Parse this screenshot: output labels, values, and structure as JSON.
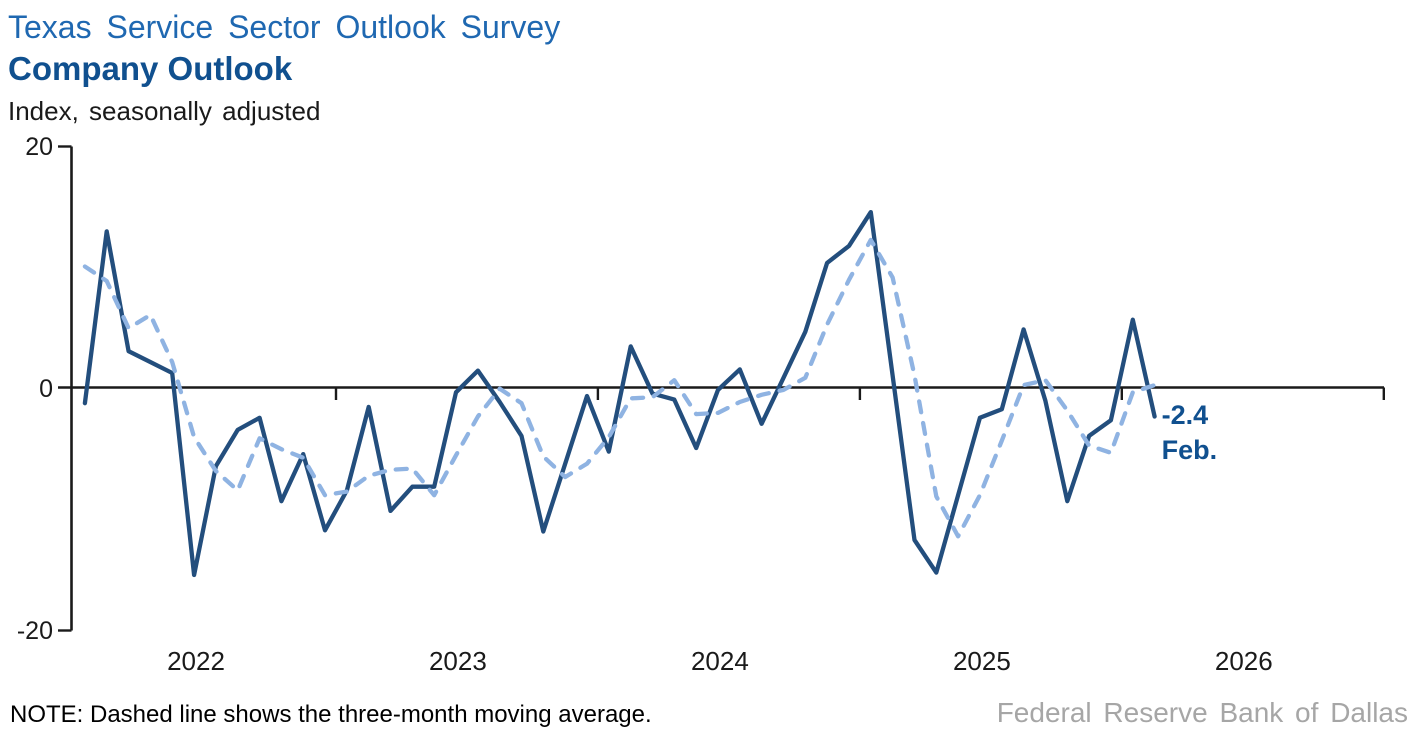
{
  "header": {
    "survey_title": "Texas Service Sector Outlook Survey",
    "chart_title": "Company Outlook",
    "units_label": "Index, seasonally adjusted"
  },
  "footer": {
    "note": "NOTE: Dashed line shows the three-month moving average.",
    "source": "Federal Reserve Bank of Dallas"
  },
  "colors": {
    "title_blue": "#1f68b1",
    "title_dark_blue": "#10508f",
    "series_solid": "#234e7d",
    "series_dashed": "#8fb3e2",
    "axis_black": "#1a1a1a",
    "source_gray": "#a6a6a6"
  },
  "chart_data": {
    "type": "line",
    "title": "Company Outlook",
    "subtitle": "Texas Service Sector Outlook Survey",
    "ylabel": "Index, seasonally adjusted",
    "ylim": [
      -20,
      20
    ],
    "yticks": [
      20,
      0,
      -20
    ],
    "x_year_labels": [
      "2022",
      "2023",
      "2024",
      "2025",
      "2026"
    ],
    "x_axis_span_months": 60,
    "start_month": "Jan 2022",
    "end_month": "Feb 2026",
    "grid": false,
    "legend_position": "none",
    "series": [
      {
        "name": "Company Outlook index (monthly)",
        "style": "solid",
        "color": "#234e7d",
        "values": [
          -1.3,
          12.9,
          3.0,
          2.1,
          1.2,
          -15.5,
          -6.5,
          -3.5,
          -2.5,
          -9.4,
          -5.5,
          -11.8,
          -8.5,
          -1.6,
          -10.2,
          -8.2,
          -8.2,
          -0.4,
          1.4,
          -1.2,
          -4.0,
          -11.9,
          -6.3,
          -0.7,
          -5.3,
          3.4,
          -0.5,
          -1.0,
          -5.0,
          -0.2,
          1.5,
          -3.0,
          0.8,
          4.6,
          10.3,
          11.7,
          14.5,
          1.0,
          -12.6,
          -15.3,
          -8.9,
          -2.5,
          -1.8,
          4.8,
          -1.1,
          -9.4,
          -4.0,
          -2.7,
          5.6,
          -2.4
        ]
      },
      {
        "name": "Three-month moving average",
        "style": "dashed",
        "color": "#8fb3e2",
        "values": [
          10.0,
          8.8,
          4.9,
          6.0,
          2.1,
          -4.1,
          -6.9,
          -8.5,
          -4.2,
          -5.1,
          -5.8,
          -8.9,
          -8.6,
          -7.3,
          -6.8,
          -6.7,
          -8.9,
          -5.6,
          -2.4,
          -0.1,
          -1.3,
          -5.7,
          -7.4,
          -6.3,
          -4.1,
          -0.9,
          -0.8,
          0.6,
          -2.2,
          -2.1,
          -1.2,
          -0.6,
          -0.2,
          0.8,
          5.2,
          8.9,
          12.2,
          9.1,
          1.0,
          -9.0,
          -12.3,
          -8.9,
          -4.4,
          0.2,
          0.6,
          -1.9,
          -4.8,
          -5.4,
          -0.4,
          0.2
        ]
      }
    ],
    "end_label": {
      "value_text": "-2.4",
      "month_text": "Feb.",
      "last_value": -2.4,
      "color": "#10508f"
    }
  }
}
